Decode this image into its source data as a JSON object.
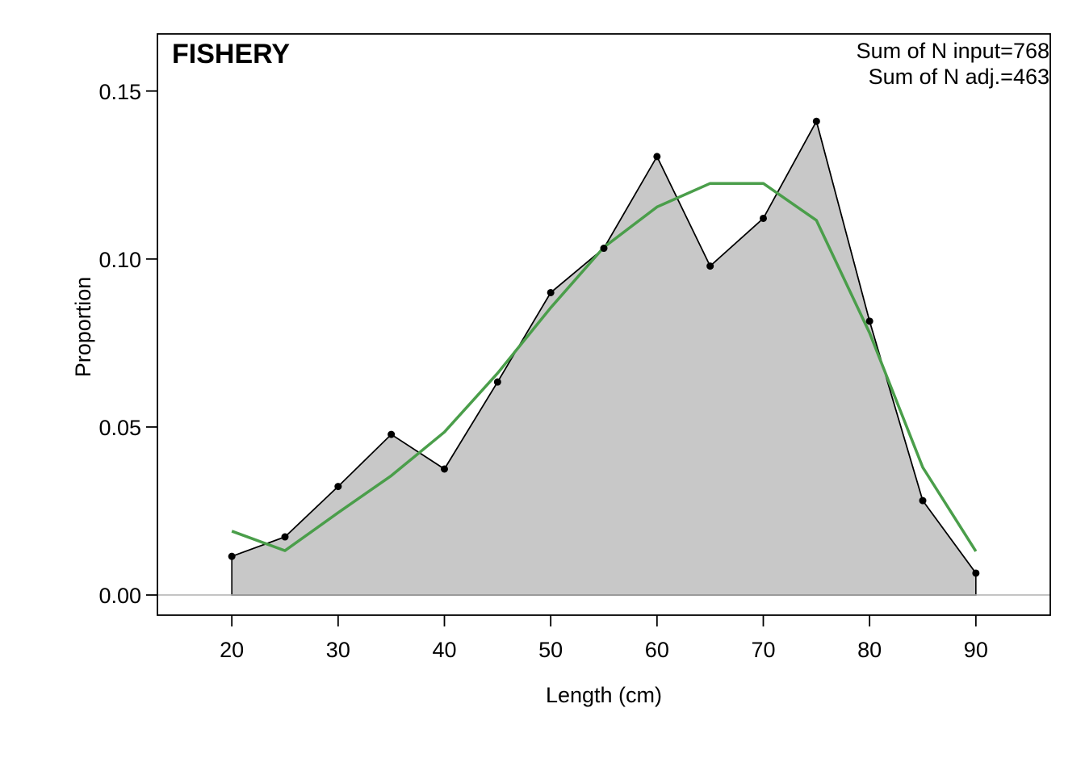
{
  "chart_data": {
    "type": "area",
    "title": "FISHERY",
    "xlabel": "Length (cm)",
    "ylabel": "Proportion",
    "xlim": [
      13,
      97
    ],
    "ylim": [
      -0.006,
      0.167
    ],
    "x_ticks": [
      20,
      30,
      40,
      50,
      60,
      70,
      80,
      90
    ],
    "y_ticks": [
      0.0,
      0.05,
      0.1,
      0.15
    ],
    "y_tick_labels": [
      "0.00",
      "0.05",
      "0.10",
      "0.15"
    ],
    "annotations": [
      "Sum of N input=768",
      "Sum of N adj.=463"
    ],
    "grid": false,
    "series": [
      {
        "kind": "observed",
        "x": [
          20,
          25,
          30,
          35,
          40,
          45,
          50,
          55,
          60,
          65,
          70,
          75,
          80,
          85,
          90
        ],
        "values": [
          0.0115,
          0.0173,
          0.0323,
          0.0478,
          0.0375,
          0.0634,
          0.09,
          0.1032,
          0.1305,
          0.0979,
          0.1121,
          0.141,
          0.0815,
          0.0281,
          0.0065
        ]
      },
      {
        "kind": "expected",
        "x": [
          20,
          25,
          30,
          35,
          40,
          45,
          50,
          55,
          60,
          65,
          70,
          75,
          80,
          85,
          90
        ],
        "values": [
          0.019,
          0.0132,
          0.0245,
          0.0355,
          0.0485,
          0.066,
          0.0855,
          0.1035,
          0.1155,
          0.1225,
          0.1225,
          0.1115,
          0.078,
          0.038,
          0.013
        ]
      }
    ],
    "colors": {
      "fill": "#c8c8c8",
      "observed_line": "#000000",
      "expected_line": "#4a9e4a",
      "zero_line": "#b0b0b0"
    }
  }
}
